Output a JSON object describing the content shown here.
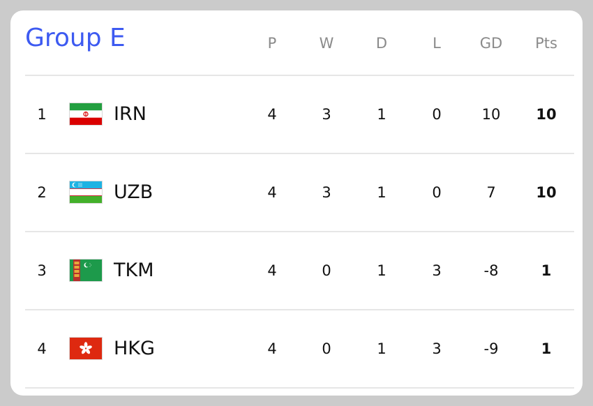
{
  "group_title": "Group E",
  "columns": [
    "P",
    "W",
    "D",
    "L",
    "GD",
    "Pts"
  ],
  "rows": [
    {
      "rank": "1",
      "team": "IRN",
      "flag_icon": "iran-flag-icon",
      "P": "4",
      "W": "3",
      "D": "1",
      "L": "0",
      "GD": "10",
      "Pts": "10"
    },
    {
      "rank": "2",
      "team": "UZB",
      "flag_icon": "uzbekistan-flag-icon",
      "P": "4",
      "W": "3",
      "D": "1",
      "L": "0",
      "GD": "7",
      "Pts": "10"
    },
    {
      "rank": "3",
      "team": "TKM",
      "flag_icon": "turkmenistan-flag-icon",
      "P": "4",
      "W": "0",
      "D": "1",
      "L": "3",
      "GD": "-8",
      "Pts": "1"
    },
    {
      "rank": "4",
      "team": "HKG",
      "flag_icon": "hong-kong-flag-icon",
      "P": "4",
      "W": "0",
      "D": "1",
      "L": "3",
      "GD": "-9",
      "Pts": "1"
    }
  ],
  "colors": {
    "title": "#3d5af1",
    "header": "#8a8a8a",
    "text": "#111111",
    "separator": "#e6e6e6"
  }
}
